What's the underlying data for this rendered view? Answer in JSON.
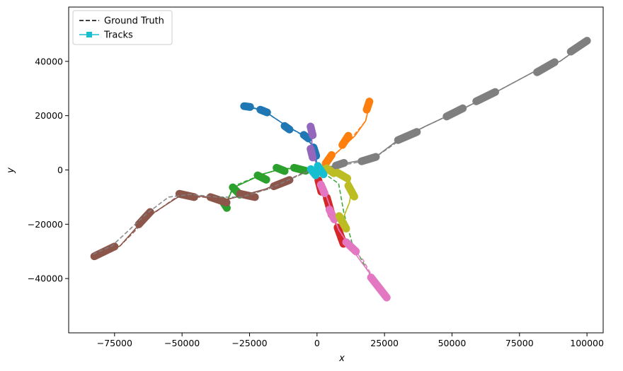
{
  "chart_data": {
    "type": "line",
    "title": "",
    "xlabel": "x",
    "ylabel": "y",
    "xlim": [
      -92000,
      106000
    ],
    "ylim": [
      -60000,
      60000
    ],
    "xticks": [
      -75000,
      -50000,
      -25000,
      0,
      25000,
      50000,
      75000,
      100000
    ],
    "xtick_labels": [
      "−75000",
      "−50000",
      "−25000",
      "0",
      "25000",
      "50000",
      "75000",
      "100000"
    ],
    "yticks": [
      -40000,
      -20000,
      0,
      20000,
      40000
    ],
    "ytick_labels": [
      "−40000",
      "−20000",
      "0",
      "20000",
      "40000"
    ],
    "grid": false,
    "legend": {
      "placement": "top-left",
      "entries": [
        {
          "label": "Ground Truth",
          "style": "dashed",
          "color": "#000000"
        },
        {
          "label": "Tracks",
          "style": "solid-square",
          "color": "#17becf"
        }
      ]
    },
    "series": [
      {
        "color": "#1f77b4",
        "gt": [
          [
            -28000,
            24000
          ],
          [
            -20000,
            22000
          ],
          [
            -11000,
            16000
          ],
          [
            -4000,
            12000
          ],
          [
            -1000,
            8000
          ],
          [
            0,
            2000
          ]
        ],
        "track": [
          [
            -28000,
            24000
          ],
          [
            -25000,
            23000
          ],
          [
            -20000,
            22000
          ],
          [
            -11000,
            16000
          ],
          [
            -4500,
            12500
          ],
          [
            -1000,
            8000
          ],
          [
            0,
            2000
          ]
        ],
        "clusters": [
          [
            -27000,
            23500,
            -24800,
            23200
          ],
          [
            -21000,
            22200,
            -18500,
            21200
          ],
          [
            -12000,
            16200,
            -10200,
            14900
          ],
          [
            -4900,
            12900,
            -3200,
            11600
          ],
          [
            -1300,
            8300,
            -300,
            5200
          ]
        ]
      },
      {
        "color": "#ff7f0e",
        "gt": [
          [
            19500,
            24500
          ],
          [
            18000,
            18000
          ],
          [
            13000,
            12000
          ],
          [
            8000,
            7000
          ],
          [
            3500,
            3000
          ]
        ],
        "track": [
          [
            19500,
            24500
          ],
          [
            18000,
            18000
          ],
          [
            14000,
            12500
          ],
          [
            8000,
            7000
          ],
          [
            3500,
            3000
          ]
        ],
        "clusters": [
          [
            19400,
            25200,
            18400,
            22200
          ],
          [
            11600,
            12600,
            9400,
            9200
          ],
          [
            5400,
            5500,
            3200,
            2400
          ]
        ]
      },
      {
        "color": "#2ca02c",
        "gt": [
          [
            -34000,
            -13000
          ],
          [
            -31000,
            -6000
          ],
          [
            -20000,
            -1500
          ],
          [
            -13000,
            500
          ],
          [
            -5000,
            500
          ],
          [
            0,
            500
          ],
          [
            8000,
            -5000
          ],
          [
            10000,
            -16000
          ],
          [
            13000,
            -27000
          ],
          [
            21000,
            -41000
          ],
          [
            24000,
            -46000
          ]
        ],
        "track": [
          [
            -34000,
            -13000
          ],
          [
            -31000,
            -6500
          ],
          [
            -20000,
            -1500
          ],
          [
            -13000,
            500
          ],
          [
            -5000,
            500
          ]
        ],
        "clusters": [
          [
            -35200,
            -11200,
            -33400,
            -14000
          ],
          [
            -31200,
            -6400,
            -28600,
            -9100
          ],
          [
            -22000,
            -2000,
            -18800,
            -3600
          ],
          [
            -15000,
            800,
            -12000,
            -400
          ],
          [
            -8500,
            800,
            -4200,
            -300
          ]
        ]
      },
      {
        "color": "#d62728",
        "gt": [
          [
            1000,
            -4000
          ],
          [
            4000,
            -12000
          ],
          [
            7000,
            -20000
          ],
          [
            9000,
            -26000
          ]
        ],
        "track": [
          [
            1000,
            -4000
          ],
          [
            4000,
            -12000
          ],
          [
            7000,
            -20000
          ],
          [
            9000,
            -26000
          ]
        ],
        "clusters": [
          [
            500,
            -3800,
            1600,
            -8000
          ],
          [
            3600,
            -10200,
            5400,
            -16500
          ],
          [
            7600,
            -21200,
            9800,
            -27200
          ]
        ]
      },
      {
        "color": "#9467bd",
        "gt": [
          [
            -2000,
            15000
          ],
          [
            -2000,
            6000
          ],
          [
            0,
            2000
          ]
        ],
        "track": [
          [
            -2000,
            15000
          ],
          [
            -1800,
            6000
          ],
          [
            0,
            2000
          ]
        ],
        "clusters": [
          [
            -2400,
            16000,
            -1600,
            12800
          ],
          [
            -2400,
            7800,
            -1600,
            4600
          ]
        ]
      },
      {
        "color": "#8c564b",
        "gt": [
          [
            -82000,
            -32000
          ],
          [
            -73000,
            -28000
          ],
          [
            -62000,
            -17000
          ],
          [
            -52000,
            -10000
          ],
          [
            -42000,
            -10000
          ],
          [
            -36000,
            -11500
          ],
          [
            -28000,
            -9500
          ],
          [
            -18000,
            -7000
          ],
          [
            -5000,
            -1000
          ],
          [
            0,
            0
          ]
        ],
        "track": [
          [
            -82000,
            -32000
          ],
          [
            -73000,
            -28000
          ],
          [
            -64000,
            -18000
          ],
          [
            -50000,
            -9000
          ],
          [
            -40000,
            -10000
          ],
          [
            -34000,
            -11000
          ],
          [
            -28000,
            -9500
          ],
          [
            -19000,
            -7000
          ],
          [
            -12000,
            -4000
          ]
        ],
        "clusters": [
          [
            -82500,
            -31800,
            -75000,
            -28200
          ],
          [
            -66000,
            -20000,
            -61800,
            -15500
          ],
          [
            -51000,
            -8800,
            -45500,
            -10000
          ],
          [
            -39500,
            -10000,
            -33500,
            -12000
          ],
          [
            -28500,
            -8800,
            -23000,
            -10000
          ],
          [
            -16000,
            -6000,
            -10200,
            -3700
          ]
        ]
      },
      {
        "color": "#e377c2",
        "gt": [
          [
            1500,
            -4000
          ],
          [
            5000,
            -14000
          ],
          [
            8000,
            -22000
          ],
          [
            12000,
            -28000
          ],
          [
            17000,
            -33000
          ],
          [
            22000,
            -42000
          ],
          [
            25000,
            -46500
          ]
        ],
        "track": [
          [
            1500,
            -4000
          ],
          [
            5000,
            -14000
          ],
          [
            8000,
            -22000
          ],
          [
            12000,
            -28000
          ],
          [
            21000,
            -40000
          ],
          [
            25000,
            -46500
          ]
        ],
        "clusters": [
          [
            1400,
            -5400,
            2800,
            -8600
          ],
          [
            4600,
            -14600,
            6400,
            -18200
          ],
          [
            10800,
            -26600,
            14400,
            -30000
          ],
          [
            20000,
            -39600,
            25800,
            -47000
          ]
        ]
      },
      {
        "color": "#7f7f7f",
        "gt": [
          [
            -83000,
            -31000
          ],
          [
            -76000,
            -28000
          ],
          [
            -63000,
            -16000
          ],
          [
            -55000,
            -10000
          ],
          [
            -47000,
            -9000
          ],
          [
            -37000,
            -10000
          ],
          [
            -28000,
            -10000
          ],
          [
            -18000,
            -7000
          ],
          [
            -9000,
            -3000
          ],
          [
            -2000,
            0
          ],
          [
            8000,
            1500
          ],
          [
            16000,
            3000
          ],
          [
            22000,
            5000
          ],
          [
            30000,
            10500
          ],
          [
            40000,
            16000
          ],
          [
            55000,
            23000
          ],
          [
            65000,
            28000
          ],
          [
            80000,
            36000
          ],
          [
            90000,
            40000
          ],
          [
            100000,
            47000
          ]
        ],
        "track": [
          [
            0,
            0
          ],
          [
            8000,
            2000
          ],
          [
            16000,
            3500
          ],
          [
            22000,
            5000
          ],
          [
            30000,
            11000
          ],
          [
            40000,
            16000
          ],
          [
            55000,
            23000
          ],
          [
            65000,
            28000
          ],
          [
            80000,
            36000
          ],
          [
            90000,
            40000
          ],
          [
            100000,
            47000
          ]
        ],
        "clusters": [
          [
            7000,
            1600,
            10000,
            2600
          ],
          [
            16500,
            3200,
            21800,
            4800
          ],
          [
            30000,
            11000,
            37000,
            14000
          ],
          [
            48000,
            19700,
            54000,
            22700
          ],
          [
            59000,
            25300,
            66000,
            28700
          ],
          [
            81500,
            36000,
            88000,
            39700
          ],
          [
            94000,
            43600,
            100000,
            47600
          ]
        ]
      },
      {
        "color": "#bcbd22",
        "gt": [
          [
            2000,
            1000
          ],
          [
            7000,
            -1500
          ],
          [
            11000,
            -2000
          ],
          [
            13000,
            -6000
          ],
          [
            12000,
            -12000
          ],
          [
            10000,
            -17000
          ],
          [
            9000,
            -21000
          ]
        ],
        "track": [
          [
            2000,
            1000
          ],
          [
            7000,
            -1500
          ],
          [
            11000,
            -2000
          ],
          [
            13000,
            -6000
          ],
          [
            12000,
            -12000
          ],
          [
            10000,
            -17000
          ],
          [
            9000,
            -21000
          ]
        ],
        "clusters": [
          [
            3600,
            600,
            6200,
            -1200
          ],
          [
            7600,
            -1000,
            11200,
            -3100
          ],
          [
            11600,
            -5800,
            13800,
            -9800
          ],
          [
            8200,
            -17000,
            10800,
            -21600
          ]
        ]
      },
      {
        "color": "#17becf",
        "gt": [
          [
            -1500,
            -300
          ],
          [
            1500,
            300
          ],
          [
            0,
            0
          ]
        ],
        "track": [
          [
            -1500,
            -300
          ],
          [
            0,
            0
          ],
          [
            1500,
            300
          ]
        ],
        "clusters": [
          [
            -2300,
            300,
            -500,
            -2000
          ],
          [
            300,
            1500,
            2400,
            -1600
          ]
        ]
      }
    ]
  }
}
